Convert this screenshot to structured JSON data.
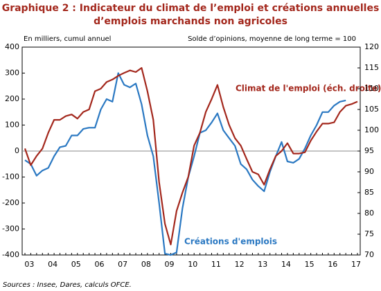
{
  "chart_data": {
    "type": "line",
    "title": "Graphique 2 : Indicateur du climat de l’emploi et créations annuelles",
    "subtitle": "d’emplois marchands non agricoles",
    "y_label": "En milliers, cumul annuel",
    "y2_label": "Solde d’opinions, moyenne de long terme = 100",
    "source": "Sources : Insee, Dares, calculs OFCE.",
    "categories": [
      null,
      "03",
      null,
      null,
      null,
      "04",
      null,
      null,
      null,
      "05",
      null,
      null,
      null,
      "06",
      null,
      null,
      null,
      "07",
      null,
      null,
      null,
      "08",
      null,
      null,
      null,
      "09",
      null,
      null,
      null,
      "10",
      null,
      null,
      null,
      "11",
      null,
      null,
      null,
      "12",
      null,
      null,
      null,
      "13",
      null,
      null,
      null,
      "14",
      null,
      null,
      null,
      "15",
      null,
      null,
      null,
      "16",
      null,
      null,
      null,
      "17"
    ],
    "ylim": [
      -400,
      400
    ],
    "yticks": [
      -400,
      -300,
      -200,
      -100,
      0,
      100,
      200,
      300,
      400
    ],
    "y2lim": [
      70,
      120
    ],
    "y2ticks": [
      70,
      75,
      80,
      85,
      90,
      95,
      100,
      105,
      110,
      115,
      120
    ],
    "series": [
      {
        "name": "Créations d'emplois",
        "color": "#2a78c2",
        "values": [
          -35,
          -50,
          -95,
          -75,
          -65,
          -20,
          15,
          20,
          60,
          60,
          85,
          90,
          90,
          160,
          200,
          190,
          300,
          255,
          245,
          260,
          180,
          60,
          -20,
          -200,
          -395,
          -400,
          -390,
          -220,
          -100,
          -20,
          70,
          80,
          110,
          145,
          80,
          50,
          20,
          -50,
          -70,
          -110,
          -135,
          -155,
          -80,
          -20,
          35,
          -40,
          -45,
          -30,
          10,
          60,
          100,
          150,
          150,
          175,
          190,
          195,
          null,
          null
        ]
      },
      {
        "name": "Climat de l'emploi (éch. droite)",
        "color": "#a3271c",
        "axis": "y2",
        "values": [
          95.6,
          91.6,
          93.8,
          95.6,
          99.4,
          102.5,
          102.5,
          103.4,
          103.8,
          102.8,
          104.4,
          105,
          109.4,
          110,
          111.6,
          112.2,
          113.1,
          113.8,
          114.4,
          114,
          115,
          109.4,
          102.5,
          87.5,
          77.5,
          72.5,
          80.6,
          85,
          88.8,
          96.3,
          99.4,
          104.4,
          107.5,
          110.9,
          105.6,
          101.3,
          98.1,
          96.3,
          93.1,
          90,
          89.4,
          86.9,
          90.6,
          93.8,
          95,
          96.9,
          94.4,
          94.4,
          94.7,
          97.5,
          99.7,
          101.6,
          101.6,
          101.9,
          104.4,
          105.9,
          106.3,
          106.9
        ]
      }
    ]
  }
}
